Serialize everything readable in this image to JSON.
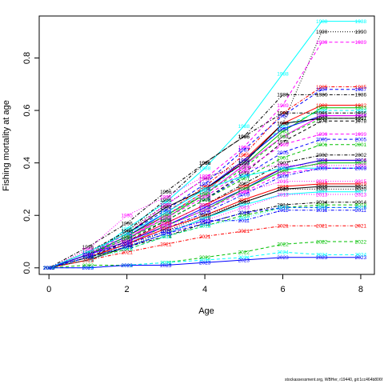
{
  "chart_data": {
    "type": "line",
    "title": "",
    "xlabel": "Age",
    "ylabel": "Fishing mortality at age",
    "xlim": [
      -0.25,
      8.35
    ],
    "ylim": [
      -0.025,
      0.96
    ],
    "x_ticks": [
      0,
      2,
      4,
      6,
      8
    ],
    "y_ticks": [
      0.0,
      0.2,
      0.4,
      0.6,
      0.8
    ],
    "y_tick_labels": [
      "0.0",
      "0.2",
      "0.4",
      "0.6",
      "0.8"
    ],
    "x": [
      0,
      1,
      2,
      3,
      4,
      5,
      6,
      7,
      8
    ],
    "legend": "none (each series labelled by year at every point)",
    "series": [
      {
        "name": "1988",
        "color": "#00FFFF",
        "dash": "solid",
        "values": [
          0.0,
          0.04,
          0.15,
          0.25,
          0.38,
          0.54,
          0.74,
          0.94,
          0.94
        ]
      },
      {
        "name": "1990",
        "color": "#000000",
        "dash": "dotted",
        "values": [
          0.0,
          0.05,
          0.14,
          0.24,
          0.34,
          0.4,
          0.55,
          0.9,
          0.9
        ]
      },
      {
        "name": "1989",
        "color": "#FF00FF",
        "dash": "dashed",
        "values": [
          0.0,
          0.05,
          0.13,
          0.24,
          0.34,
          0.46,
          0.62,
          0.86,
          0.86
        ]
      },
      {
        "name": "1985",
        "color": "#FF0000",
        "dash": "dotdash",
        "values": [
          0.0,
          0.05,
          0.12,
          0.21,
          0.31,
          0.43,
          0.59,
          0.69,
          0.69
        ]
      },
      {
        "name": "1987",
        "color": "#0000FF",
        "dash": "dashed",
        "values": [
          0.0,
          0.06,
          0.13,
          0.22,
          0.32,
          0.45,
          0.58,
          0.68,
          0.68
        ]
      },
      {
        "name": "1986",
        "color": "#000000",
        "dash": "dotdash",
        "values": [
          0.0,
          0.06,
          0.14,
          0.26,
          0.4,
          0.5,
          0.66,
          0.66,
          0.66
        ]
      },
      {
        "name": "1982",
        "color": "#FF0000",
        "dash": "solid",
        "values": [
          0.0,
          0.05,
          0.12,
          0.2,
          0.29,
          0.41,
          0.55,
          0.62,
          0.62
        ]
      },
      {
        "name": "1983",
        "color": "#00C000",
        "dash": "solid",
        "values": [
          0.0,
          0.05,
          0.11,
          0.19,
          0.28,
          0.39,
          0.52,
          0.61,
          0.61
        ]
      },
      {
        "name": "1993",
        "color": "#00FFFF",
        "dash": "dashed",
        "values": [
          0.0,
          0.05,
          0.12,
          0.2,
          0.29,
          0.4,
          0.54,
          0.6,
          0.6
        ]
      },
      {
        "name": "1996",
        "color": "#000000",
        "dash": "dotdash",
        "values": [
          0.0,
          0.08,
          0.17,
          0.29,
          0.4,
          0.5,
          0.59,
          0.59,
          0.59
        ]
      },
      {
        "name": "1994",
        "color": "#0000FF",
        "dash": "solid",
        "values": [
          0.0,
          0.05,
          0.12,
          0.21,
          0.3,
          0.41,
          0.53,
          0.58,
          0.58
        ]
      },
      {
        "name": "1998",
        "color": "#FF00FF",
        "dash": "solid",
        "values": [
          0.0,
          0.05,
          0.11,
          0.2,
          0.28,
          0.39,
          0.5,
          0.58,
          0.58
        ]
      },
      {
        "name": "1991",
        "color": "#00C000",
        "dash": "dashed",
        "values": [
          0.0,
          0.05,
          0.12,
          0.2,
          0.28,
          0.38,
          0.5,
          0.57,
          0.57
        ]
      },
      {
        "name": "1997",
        "color": "#000000",
        "dash": "solid",
        "values": [
          0.0,
          0.06,
          0.13,
          0.23,
          0.3,
          0.4,
          0.55,
          0.57,
          0.57
        ]
      },
      {
        "name": "1978",
        "color": "#000000",
        "dash": "dashed",
        "values": [
          0.0,
          0.04,
          0.1,
          0.18,
          0.26,
          0.36,
          0.48,
          0.56,
          0.56
        ]
      },
      {
        "name": "1999",
        "color": "#FF00FF",
        "dash": "dashed",
        "values": [
          0.0,
          0.05,
          0.11,
          0.19,
          0.27,
          0.37,
          0.47,
          0.51,
          0.51
        ]
      },
      {
        "name": "2005",
        "color": "#0000FF",
        "dash": "dashed",
        "values": [
          0.0,
          0.05,
          0.11,
          0.18,
          0.26,
          0.35,
          0.44,
          0.49,
          0.49
        ]
      },
      {
        "name": "2001",
        "color": "#00C000",
        "dash": "dashed",
        "values": [
          0.0,
          0.05,
          0.11,
          0.18,
          0.26,
          0.34,
          0.42,
          0.47,
          0.47
        ]
      },
      {
        "name": "2002",
        "color": "#000000",
        "dash": "dotdash",
        "values": [
          0.0,
          0.05,
          0.1,
          0.17,
          0.24,
          0.32,
          0.4,
          0.43,
          0.43
        ]
      },
      {
        "name": "2006",
        "color": "#FF0000",
        "dash": "solid",
        "values": [
          0.0,
          0.05,
          0.1,
          0.17,
          0.24,
          0.31,
          0.38,
          0.41,
          0.41
        ]
      },
      {
        "name": "2004",
        "color": "#0000FF",
        "dash": "solid",
        "values": [
          0.0,
          0.05,
          0.1,
          0.16,
          0.23,
          0.3,
          0.38,
          0.41,
          0.41
        ]
      },
      {
        "name": "2008",
        "color": "#00C000",
        "dash": "solid",
        "values": [
          0.0,
          0.04,
          0.09,
          0.16,
          0.22,
          0.3,
          0.37,
          0.4,
          0.4
        ]
      },
      {
        "name": "1995",
        "color": "#FF00FF",
        "dash": "dotted",
        "values": [
          0.0,
          0.07,
          0.2,
          0.27,
          0.35,
          0.38,
          0.39,
          0.39,
          0.39
        ]
      },
      {
        "name": "1992",
        "color": "#00FFFF",
        "dash": "solid",
        "values": [
          0.0,
          0.06,
          0.13,
          0.21,
          0.3,
          0.35,
          0.38,
          0.38,
          0.38
        ]
      },
      {
        "name": "2003",
        "color": "#FF00FF",
        "dash": "dashed",
        "values": [
          0.0,
          0.04,
          0.09,
          0.16,
          0.22,
          0.29,
          0.36,
          0.38,
          0.38
        ]
      },
      {
        "name": "2009",
        "color": "#0000FF",
        "dash": "dotdash",
        "values": [
          0.0,
          0.04,
          0.09,
          0.15,
          0.21,
          0.28,
          0.35,
          0.38,
          0.38
        ]
      },
      {
        "name": "2015",
        "color": "#FF00FF",
        "dash": "dotted",
        "values": [
          0.0,
          0.05,
          0.1,
          0.17,
          0.24,
          0.29,
          0.33,
          0.33,
          0.33
        ]
      },
      {
        "name": "2019",
        "color": "#FF0000",
        "dash": "solid",
        "values": [
          0.0,
          0.04,
          0.09,
          0.15,
          0.2,
          0.26,
          0.31,
          0.32,
          0.32
        ]
      },
      {
        "name": "2010",
        "color": "#000000",
        "dash": "solid",
        "values": [
          0.0,
          0.03,
          0.08,
          0.13,
          0.19,
          0.25,
          0.3,
          0.31,
          0.31
        ]
      },
      {
        "name": "2020",
        "color": "#000000",
        "dash": "dotted",
        "values": [
          0.0,
          0.04,
          0.08,
          0.14,
          0.2,
          0.25,
          0.3,
          0.3,
          0.3
        ]
      },
      {
        "name": "2017",
        "color": "#00FFFF",
        "dash": "solid",
        "values": [
          0.0,
          0.04,
          0.08,
          0.13,
          0.19,
          0.24,
          0.28,
          0.29,
          0.29
        ]
      },
      {
        "name": "2013",
        "color": "#FF00FF",
        "dash": "dotted",
        "values": [
          0.0,
          0.04,
          0.08,
          0.13,
          0.18,
          0.23,
          0.28,
          0.28,
          0.28
        ]
      },
      {
        "name": "2014",
        "color": "#000000",
        "dash": "dotdash",
        "values": [
          0.0,
          0.04,
          0.08,
          0.12,
          0.17,
          0.21,
          0.24,
          0.25,
          0.25
        ]
      },
      {
        "name": "2018",
        "color": "#00C000",
        "dash": "dashed",
        "values": [
          0.0,
          0.04,
          0.07,
          0.12,
          0.16,
          0.2,
          0.23,
          0.24,
          0.24
        ]
      },
      {
        "name": "2016",
        "color": "#0000FF",
        "dash": "dashed",
        "values": [
          0.0,
          0.04,
          0.08,
          0.13,
          0.17,
          0.21,
          0.23,
          0.23,
          0.23
        ]
      },
      {
        "name": "2012",
        "color": "#00FFFF",
        "dash": "dotted",
        "values": [
          0.0,
          0.03,
          0.07,
          0.12,
          0.16,
          0.19,
          0.23,
          0.23,
          0.23
        ]
      },
      {
        "name": "2011",
        "color": "#0000FF",
        "dash": "dotdash",
        "values": [
          0.0,
          0.05,
          0.09,
          0.14,
          0.18,
          0.18,
          0.22,
          0.22,
          0.22
        ]
      },
      {
        "name": "2021",
        "color": "#FF0000",
        "dash": "dotdash",
        "values": [
          0.0,
          0.03,
          0.06,
          0.09,
          0.12,
          0.14,
          0.16,
          0.16,
          0.16
        ]
      },
      {
        "name": "2022",
        "color": "#00C000",
        "dash": "dashed",
        "values": [
          0.0,
          0.01,
          0.01,
          0.02,
          0.04,
          0.06,
          0.09,
          0.1,
          0.1
        ]
      },
      {
        "name": "2024",
        "color": "#00FFFF",
        "dash": "dashed",
        "values": [
          0.0,
          0.0,
          0.01,
          0.02,
          0.03,
          0.04,
          0.06,
          0.05,
          0.05
        ]
      },
      {
        "name": "2023",
        "color": "#0000FF",
        "dash": "solid",
        "values": [
          0.0,
          0.0,
          0.01,
          0.01,
          0.02,
          0.03,
          0.04,
          0.04,
          0.04
        ]
      }
    ]
  },
  "footer": {
    "text": "stockassessment.org, WBHer, r19440, git:1cc464b806f"
  }
}
